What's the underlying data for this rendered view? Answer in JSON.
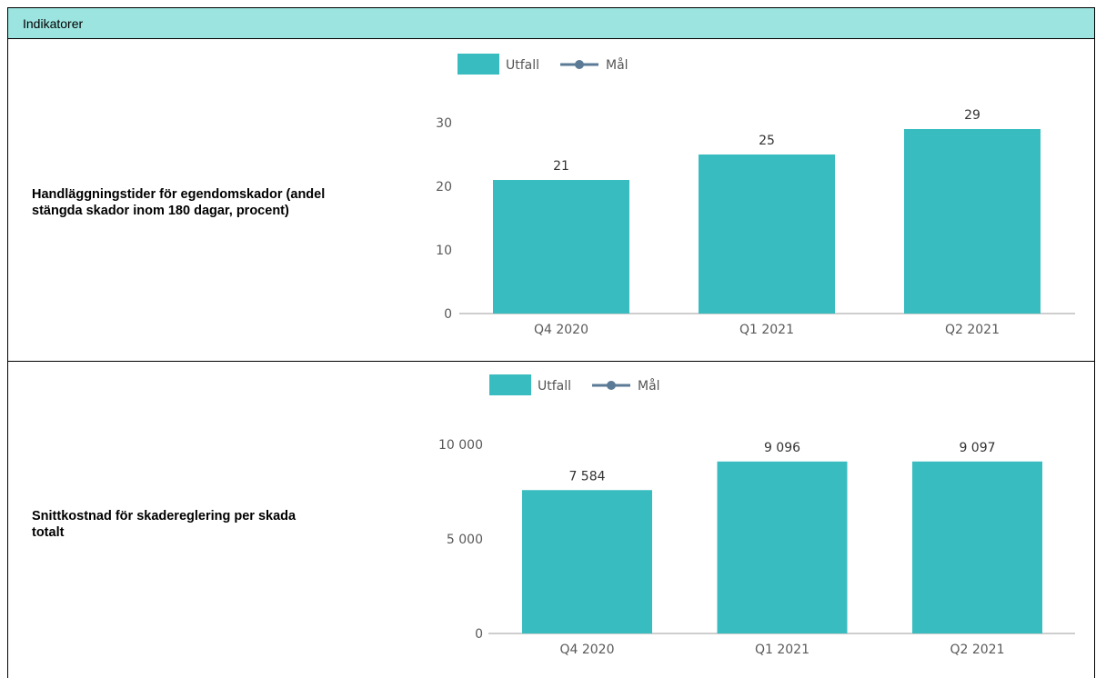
{
  "header": {
    "title": "Indikatorer"
  },
  "colors": {
    "bar": "#38bcbf",
    "target_line": "#5a7a96",
    "axis": "#9e9e9e",
    "header_bg": "#9be4df"
  },
  "legend": {
    "bar_label": "Utfall",
    "line_label": "Mål"
  },
  "rows": [
    {
      "label": "Handläggningstider för egendomskador (andel\nstängda skador inom 180 dagar, procent)"
    },
    {
      "label": "Snittkostnad för skadereglering per skada\ntotalt"
    }
  ],
  "chart_data": [
    {
      "type": "bar",
      "categories": [
        "Q4 2020",
        "Q1 2021",
        "Q2 2021"
      ],
      "series": [
        {
          "name": "Utfall",
          "values": [
            21,
            25,
            29
          ]
        }
      ],
      "data_labels": [
        "21",
        "25",
        "29"
      ],
      "yticks": [
        "0",
        "10",
        "20",
        "30"
      ],
      "ylim": [
        0,
        30
      ],
      "legend_entries": [
        "Utfall",
        "Mål"
      ],
      "title": "",
      "xlabel": "",
      "ylabel": ""
    },
    {
      "type": "bar",
      "categories": [
        "Q4 2020",
        "Q1 2021",
        "Q2 2021"
      ],
      "series": [
        {
          "name": "Utfall",
          "values": [
            7584,
            9096,
            9097
          ]
        }
      ],
      "data_labels": [
        "7 584",
        "9 096",
        "9 097"
      ],
      "yticks": [
        "0",
        "5 000",
        "10 000"
      ],
      "ylim": [
        0,
        10000
      ],
      "legend_entries": [
        "Utfall",
        "Mål"
      ],
      "title": "",
      "xlabel": "",
      "ylabel": ""
    }
  ]
}
